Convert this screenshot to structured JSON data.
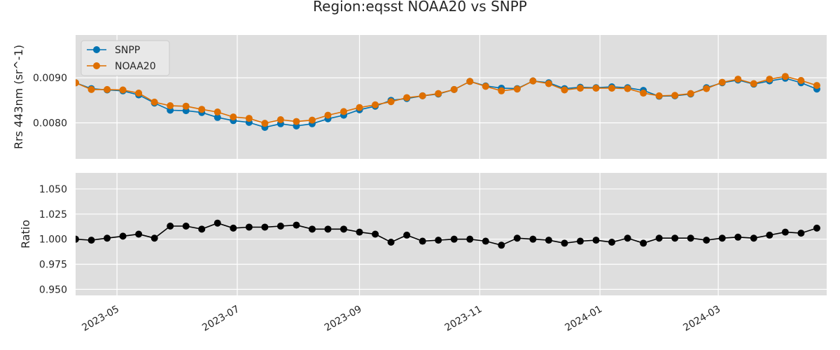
{
  "figure": {
    "title": "Region:eqsst NOAA20 vs SNPP"
  },
  "chart_data": [
    {
      "type": "line",
      "ylabel": "Rrs 443nm (sr^-1)",
      "xlim": [
        "2023-04-10",
        "2024-04-25"
      ],
      "ylim": [
        0.0072,
        0.00995
      ],
      "yticks": [
        0.008,
        0.009
      ],
      "ytick_labels": [
        "0.0080",
        "0.0090"
      ],
      "xticks": [
        "2023-05-01",
        "2023-07-01",
        "2023-09-01",
        "2023-11-01",
        "2024-01-01",
        "2024-03-01"
      ],
      "xtick_labels": [
        "2023-05",
        "2023-07",
        "2023-09",
        "2023-11",
        "2024-01",
        "2024-03"
      ],
      "x": [
        "2023-04-10",
        "2023-04-18",
        "2023-04-26",
        "2023-05-04",
        "2023-05-12",
        "2023-05-20",
        "2023-05-28",
        "2023-06-05",
        "2023-06-13",
        "2023-06-21",
        "2023-06-29",
        "2023-07-07",
        "2023-07-15",
        "2023-07-23",
        "2023-07-31",
        "2023-08-08",
        "2023-08-16",
        "2023-08-24",
        "2023-09-01",
        "2023-09-09",
        "2023-09-17",
        "2023-09-25",
        "2023-10-03",
        "2023-10-11",
        "2023-10-19",
        "2023-10-27",
        "2023-11-04",
        "2023-11-12",
        "2023-11-20",
        "2023-11-28",
        "2023-12-06",
        "2023-12-14",
        "2023-12-22",
        "2023-12-30",
        "2024-01-07",
        "2024-01-15",
        "2024-01-23",
        "2024-01-31",
        "2024-02-08",
        "2024-02-16",
        "2024-02-24",
        "2024-03-03",
        "2024-03-11",
        "2024-03-19",
        "2024-03-27",
        "2024-04-04",
        "2024-04-12",
        "2024-04-20"
      ],
      "series": [
        {
          "name": "SNPP",
          "color": "#0173b2",
          "values": [
            0.00889,
            0.00876,
            0.00873,
            0.00871,
            0.00862,
            0.00844,
            0.00828,
            0.00827,
            0.00823,
            0.00812,
            0.00805,
            0.00801,
            0.0079,
            0.00798,
            0.00793,
            0.00798,
            0.00809,
            0.00817,
            0.00829,
            0.00837,
            0.0085,
            0.00854,
            0.0086,
            0.00864,
            0.00874,
            0.00892,
            0.00882,
            0.00877,
            0.00876,
            0.00893,
            0.00889,
            0.00876,
            0.00879,
            0.00878,
            0.0088,
            0.00878,
            0.00872,
            0.00859,
            0.0086,
            0.00864,
            0.00878,
            0.00889,
            0.00895,
            0.00886,
            0.00893,
            0.00899,
            0.00889,
            0.00875
          ]
        },
        {
          "name": "NOAA20",
          "color": "#de6f00",
          "values": [
            0.00889,
            0.00874,
            0.00874,
            0.00873,
            0.00866,
            0.00846,
            0.00838,
            0.00837,
            0.0083,
            0.00824,
            0.00813,
            0.0081,
            0.00799,
            0.00807,
            0.00803,
            0.00806,
            0.00817,
            0.00825,
            0.00834,
            0.0084,
            0.00847,
            0.00856,
            0.0086,
            0.00865,
            0.00874,
            0.00892,
            0.00881,
            0.00871,
            0.00875,
            0.00893,
            0.00887,
            0.00873,
            0.00877,
            0.00877,
            0.00877,
            0.00876,
            0.00866,
            0.0086,
            0.00861,
            0.00865,
            0.00876,
            0.0089,
            0.00897,
            0.00887,
            0.00897,
            0.00903,
            0.00894,
            0.00883
          ]
        }
      ],
      "legend": {
        "placement": "top-left"
      },
      "grid": true
    },
    {
      "type": "line",
      "ylabel": "Ratio",
      "xlim": [
        "2023-04-10",
        "2024-04-25"
      ],
      "ylim": [
        0.944,
        1.066
      ],
      "yticks": [
        0.95,
        0.975,
        1.0,
        1.025,
        1.05
      ],
      "ytick_labels": [
        "0.950",
        "0.975",
        "1.000",
        "1.025",
        "1.050"
      ],
      "xticks": [
        "2023-05-01",
        "2023-07-01",
        "2023-09-01",
        "2023-11-01",
        "2024-01-01",
        "2024-03-01"
      ],
      "xtick_labels": [
        "2023-05",
        "2023-07",
        "2023-09",
        "2023-11",
        "2024-01",
        "2024-03"
      ],
      "x": [
        "2023-04-10",
        "2023-04-18",
        "2023-04-26",
        "2023-05-04",
        "2023-05-12",
        "2023-05-20",
        "2023-05-28",
        "2023-06-05",
        "2023-06-13",
        "2023-06-21",
        "2023-06-29",
        "2023-07-07",
        "2023-07-15",
        "2023-07-23",
        "2023-07-31",
        "2023-08-08",
        "2023-08-16",
        "2023-08-24",
        "2023-09-01",
        "2023-09-09",
        "2023-09-17",
        "2023-09-25",
        "2023-10-03",
        "2023-10-11",
        "2023-10-19",
        "2023-10-27",
        "2023-11-04",
        "2023-11-12",
        "2023-11-20",
        "2023-11-28",
        "2023-12-06",
        "2023-12-14",
        "2023-12-22",
        "2023-12-30",
        "2024-01-07",
        "2024-01-15",
        "2024-01-23",
        "2024-01-31",
        "2024-02-08",
        "2024-02-16",
        "2024-02-24",
        "2024-03-03",
        "2024-03-11",
        "2024-03-19",
        "2024-03-27",
        "2024-04-04",
        "2024-04-12",
        "2024-04-20"
      ],
      "series": [
        {
          "color": "#000000",
          "values": [
            1.0,
            0.999,
            1.001,
            1.003,
            1.005,
            1.001,
            1.013,
            1.013,
            1.01,
            1.016,
            1.011,
            1.012,
            1.012,
            1.013,
            1.014,
            1.01,
            1.01,
            1.01,
            1.007,
            1.005,
            0.997,
            1.004,
            0.998,
            0.999,
            1.0,
            1.0,
            0.998,
            0.994,
            1.001,
            1.0,
            0.999,
            0.996,
            0.998,
            0.999,
            0.997,
            1.001,
            0.996,
            1.001,
            1.001,
            1.001,
            0.999,
            1.001,
            1.002,
            1.001,
            1.004,
            1.007,
            1.006,
            1.011
          ]
        }
      ],
      "grid": true
    }
  ]
}
